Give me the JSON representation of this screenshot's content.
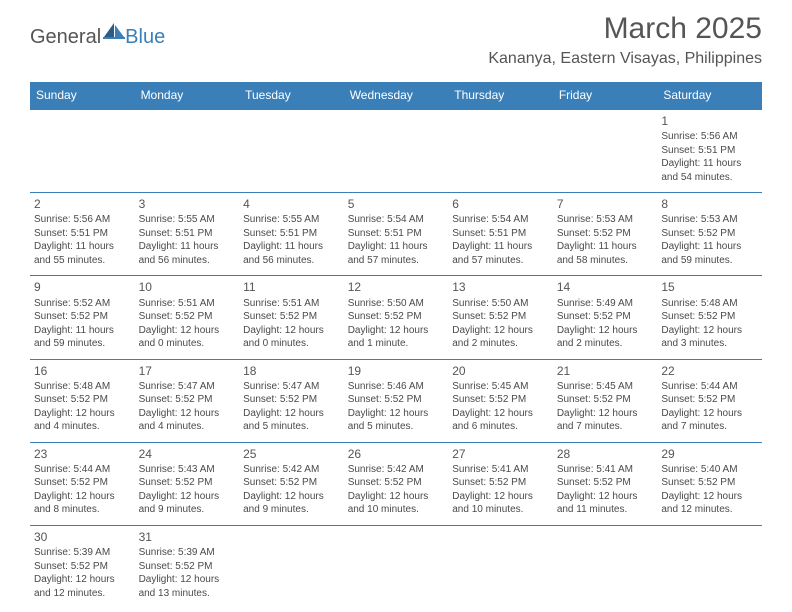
{
  "brand": {
    "part1": "General",
    "part2": "Blue"
  },
  "title": "March 2025",
  "location": "Kananya, Eastern Visayas, Philippines",
  "colors": {
    "accent": "#3b7fb8",
    "text": "#555555",
    "body": "#4a4a4a",
    "background": "#ffffff"
  },
  "typography": {
    "title_fontsize": 30,
    "location_fontsize": 16,
    "header_fontsize": 12,
    "daynum_fontsize": 12,
    "cell_fontsize": 10
  },
  "weekdays": [
    "Sunday",
    "Monday",
    "Tuesday",
    "Wednesday",
    "Thursday",
    "Friday",
    "Saturday"
  ],
  "weeks": [
    [
      null,
      null,
      null,
      null,
      null,
      null,
      {
        "n": "1",
        "sr": "Sunrise: 5:56 AM",
        "ss": "Sunset: 5:51 PM",
        "dl1": "Daylight: 11 hours",
        "dl2": "and 54 minutes."
      }
    ],
    [
      {
        "n": "2",
        "sr": "Sunrise: 5:56 AM",
        "ss": "Sunset: 5:51 PM",
        "dl1": "Daylight: 11 hours",
        "dl2": "and 55 minutes."
      },
      {
        "n": "3",
        "sr": "Sunrise: 5:55 AM",
        "ss": "Sunset: 5:51 PM",
        "dl1": "Daylight: 11 hours",
        "dl2": "and 56 minutes."
      },
      {
        "n": "4",
        "sr": "Sunrise: 5:55 AM",
        "ss": "Sunset: 5:51 PM",
        "dl1": "Daylight: 11 hours",
        "dl2": "and 56 minutes."
      },
      {
        "n": "5",
        "sr": "Sunrise: 5:54 AM",
        "ss": "Sunset: 5:51 PM",
        "dl1": "Daylight: 11 hours",
        "dl2": "and 57 minutes."
      },
      {
        "n": "6",
        "sr": "Sunrise: 5:54 AM",
        "ss": "Sunset: 5:51 PM",
        "dl1": "Daylight: 11 hours",
        "dl2": "and 57 minutes."
      },
      {
        "n": "7",
        "sr": "Sunrise: 5:53 AM",
        "ss": "Sunset: 5:52 PM",
        "dl1": "Daylight: 11 hours",
        "dl2": "and 58 minutes."
      },
      {
        "n": "8",
        "sr": "Sunrise: 5:53 AM",
        "ss": "Sunset: 5:52 PM",
        "dl1": "Daylight: 11 hours",
        "dl2": "and 59 minutes."
      }
    ],
    [
      {
        "n": "9",
        "sr": "Sunrise: 5:52 AM",
        "ss": "Sunset: 5:52 PM",
        "dl1": "Daylight: 11 hours",
        "dl2": "and 59 minutes."
      },
      {
        "n": "10",
        "sr": "Sunrise: 5:51 AM",
        "ss": "Sunset: 5:52 PM",
        "dl1": "Daylight: 12 hours",
        "dl2": "and 0 minutes."
      },
      {
        "n": "11",
        "sr": "Sunrise: 5:51 AM",
        "ss": "Sunset: 5:52 PM",
        "dl1": "Daylight: 12 hours",
        "dl2": "and 0 minutes."
      },
      {
        "n": "12",
        "sr": "Sunrise: 5:50 AM",
        "ss": "Sunset: 5:52 PM",
        "dl1": "Daylight: 12 hours",
        "dl2": "and 1 minute."
      },
      {
        "n": "13",
        "sr": "Sunrise: 5:50 AM",
        "ss": "Sunset: 5:52 PM",
        "dl1": "Daylight: 12 hours",
        "dl2": "and 2 minutes."
      },
      {
        "n": "14",
        "sr": "Sunrise: 5:49 AM",
        "ss": "Sunset: 5:52 PM",
        "dl1": "Daylight: 12 hours",
        "dl2": "and 2 minutes."
      },
      {
        "n": "15",
        "sr": "Sunrise: 5:48 AM",
        "ss": "Sunset: 5:52 PM",
        "dl1": "Daylight: 12 hours",
        "dl2": "and 3 minutes."
      }
    ],
    [
      {
        "n": "16",
        "sr": "Sunrise: 5:48 AM",
        "ss": "Sunset: 5:52 PM",
        "dl1": "Daylight: 12 hours",
        "dl2": "and 4 minutes."
      },
      {
        "n": "17",
        "sr": "Sunrise: 5:47 AM",
        "ss": "Sunset: 5:52 PM",
        "dl1": "Daylight: 12 hours",
        "dl2": "and 4 minutes."
      },
      {
        "n": "18",
        "sr": "Sunrise: 5:47 AM",
        "ss": "Sunset: 5:52 PM",
        "dl1": "Daylight: 12 hours",
        "dl2": "and 5 minutes."
      },
      {
        "n": "19",
        "sr": "Sunrise: 5:46 AM",
        "ss": "Sunset: 5:52 PM",
        "dl1": "Daylight: 12 hours",
        "dl2": "and 5 minutes."
      },
      {
        "n": "20",
        "sr": "Sunrise: 5:45 AM",
        "ss": "Sunset: 5:52 PM",
        "dl1": "Daylight: 12 hours",
        "dl2": "and 6 minutes."
      },
      {
        "n": "21",
        "sr": "Sunrise: 5:45 AM",
        "ss": "Sunset: 5:52 PM",
        "dl1": "Daylight: 12 hours",
        "dl2": "and 7 minutes."
      },
      {
        "n": "22",
        "sr": "Sunrise: 5:44 AM",
        "ss": "Sunset: 5:52 PM",
        "dl1": "Daylight: 12 hours",
        "dl2": "and 7 minutes."
      }
    ],
    [
      {
        "n": "23",
        "sr": "Sunrise: 5:44 AM",
        "ss": "Sunset: 5:52 PM",
        "dl1": "Daylight: 12 hours",
        "dl2": "and 8 minutes."
      },
      {
        "n": "24",
        "sr": "Sunrise: 5:43 AM",
        "ss": "Sunset: 5:52 PM",
        "dl1": "Daylight: 12 hours",
        "dl2": "and 9 minutes."
      },
      {
        "n": "25",
        "sr": "Sunrise: 5:42 AM",
        "ss": "Sunset: 5:52 PM",
        "dl1": "Daylight: 12 hours",
        "dl2": "and 9 minutes."
      },
      {
        "n": "26",
        "sr": "Sunrise: 5:42 AM",
        "ss": "Sunset: 5:52 PM",
        "dl1": "Daylight: 12 hours",
        "dl2": "and 10 minutes."
      },
      {
        "n": "27",
        "sr": "Sunrise: 5:41 AM",
        "ss": "Sunset: 5:52 PM",
        "dl1": "Daylight: 12 hours",
        "dl2": "and 10 minutes."
      },
      {
        "n": "28",
        "sr": "Sunrise: 5:41 AM",
        "ss": "Sunset: 5:52 PM",
        "dl1": "Daylight: 12 hours",
        "dl2": "and 11 minutes."
      },
      {
        "n": "29",
        "sr": "Sunrise: 5:40 AM",
        "ss": "Sunset: 5:52 PM",
        "dl1": "Daylight: 12 hours",
        "dl2": "and 12 minutes."
      }
    ],
    [
      {
        "n": "30",
        "sr": "Sunrise: 5:39 AM",
        "ss": "Sunset: 5:52 PM",
        "dl1": "Daylight: 12 hours",
        "dl2": "and 12 minutes."
      },
      {
        "n": "31",
        "sr": "Sunrise: 5:39 AM",
        "ss": "Sunset: 5:52 PM",
        "dl1": "Daylight: 12 hours",
        "dl2": "and 13 minutes."
      },
      null,
      null,
      null,
      null,
      null
    ]
  ]
}
